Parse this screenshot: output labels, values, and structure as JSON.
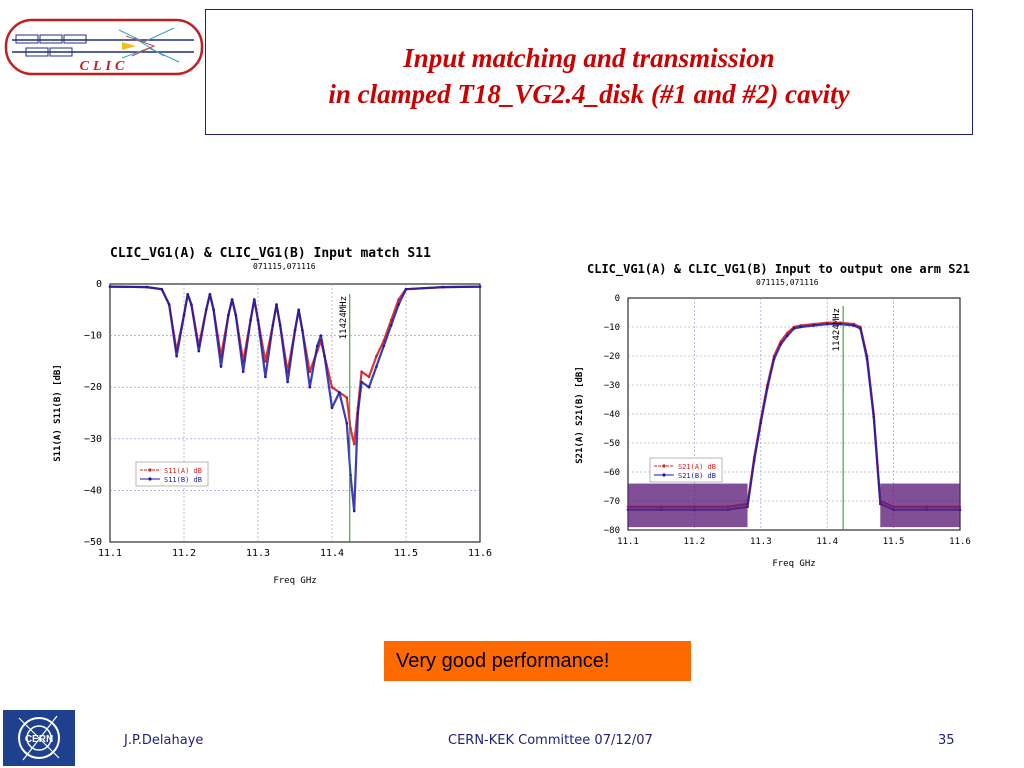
{
  "slide": {
    "title_line1": "Input matching and transmission",
    "title_line2": "in clamped T18_VG2.4_disk (#1 and #2) cavity",
    "callout": "Very good performance!",
    "footer": {
      "author": "J.P.Delahaye",
      "event": "CERN-KEK Committee 07/12/07",
      "page": "35"
    },
    "logo_text": "CLIC",
    "cern_logo_text": "CERN"
  },
  "colors": {
    "title": "#cc0000",
    "series_a": "#d42020",
    "series_b": "#1a1aa8",
    "marker_line": "#2a8a2a",
    "callout_bg": "#ff6a00",
    "grid": "#8c8cc8"
  },
  "chart_data": [
    {
      "type": "line",
      "title": "CLIC_VG1(A) & CLIC_VG1(B) Input match S11",
      "subtitle": "071115,071116",
      "xlabel": "Freq GHz",
      "ylabel": "S11(A) S11(B) [dB]",
      "xlim": [
        11.1,
        11.6
      ],
      "ylim": [
        -50,
        0
      ],
      "x_ticks": [
        "11.1",
        "11.2",
        "11.3",
        "11.4",
        "11.5",
        "11.6"
      ],
      "y_ticks": [
        "0",
        "−10",
        "−20",
        "−30",
        "−40",
        "−50"
      ],
      "marker_label": "11424MHz",
      "marker_x": 11.424,
      "grid": true,
      "legend": "left",
      "series": [
        {
          "name": "S11(A) dB",
          "x": [
            11.1,
            11.15,
            11.17,
            11.18,
            11.19,
            11.2,
            11.205,
            11.21,
            11.22,
            11.23,
            11.235,
            11.24,
            11.25,
            11.26,
            11.265,
            11.27,
            11.28,
            11.29,
            11.295,
            11.3,
            11.31,
            11.32,
            11.325,
            11.33,
            11.34,
            11.35,
            11.355,
            11.36,
            11.37,
            11.38,
            11.385,
            11.39,
            11.4,
            11.41,
            11.42,
            11.425,
            11.43,
            11.435,
            11.44,
            11.45,
            11.46,
            11.47,
            11.48,
            11.49,
            11.5,
            11.55,
            11.6
          ],
          "y": [
            -0.5,
            -0.6,
            -1,
            -4,
            -13,
            -6,
            -2,
            -4,
            -12,
            -5,
            -2,
            -5,
            -14,
            -6,
            -3,
            -6,
            -15,
            -7,
            -3,
            -7,
            -15,
            -8,
            -4,
            -8,
            -17,
            -9,
            -5,
            -9,
            -17,
            -13,
            -11,
            -14,
            -20,
            -21,
            -22,
            -28,
            -31,
            -24,
            -17,
            -18,
            -14,
            -11,
            -7,
            -3,
            -1,
            -0.6,
            -0.5
          ]
        },
        {
          "name": "S11(B) dB",
          "x": [
            11.1,
            11.15,
            11.17,
            11.18,
            11.19,
            11.2,
            11.205,
            11.21,
            11.22,
            11.23,
            11.235,
            11.24,
            11.25,
            11.26,
            11.265,
            11.27,
            11.28,
            11.29,
            11.295,
            11.3,
            11.31,
            11.32,
            11.325,
            11.33,
            11.34,
            11.35,
            11.355,
            11.36,
            11.37,
            11.38,
            11.385,
            11.39,
            11.4,
            11.41,
            11.42,
            11.425,
            11.43,
            11.435,
            11.44,
            11.45,
            11.46,
            11.47,
            11.48,
            11.49,
            11.5,
            11.55,
            11.6
          ],
          "y": [
            -0.5,
            -0.6,
            -1,
            -4,
            -14,
            -6,
            -2,
            -4,
            -13,
            -5,
            -2,
            -5,
            -16,
            -6,
            -3,
            -6,
            -17,
            -7,
            -3,
            -7,
            -18,
            -8,
            -4,
            -8,
            -19,
            -9,
            -5,
            -9,
            -20,
            -12,
            -10,
            -14,
            -24,
            -21,
            -27,
            -37,
            -44,
            -25,
            -19,
            -20,
            -16,
            -12,
            -8,
            -4,
            -1,
            -0.6,
            -0.5
          ]
        }
      ]
    },
    {
      "type": "line",
      "title": "CLIC_VG1(A) & CLIC_VG1(B) Input to output one arm S21",
      "subtitle": "071115,071116",
      "xlabel": "Freq GHz",
      "ylabel": "S21(A) S21(B) [dB]",
      "xlim": [
        11.1,
        11.6
      ],
      "ylim": [
        -80,
        0
      ],
      "x_ticks": [
        "11.1",
        "11.2",
        "11.3",
        "11.4",
        "11.5",
        "11.6"
      ],
      "y_ticks": [
        "0",
        "−10",
        "−20",
        "−30",
        "−40",
        "−50",
        "−60",
        "−70",
        "−80"
      ],
      "marker_label": "11424MHz",
      "marker_x": 11.424,
      "grid": true,
      "legend": "left",
      "series": [
        {
          "name": "S21(A) dB",
          "x": [
            11.1,
            11.15,
            11.2,
            11.25,
            11.28,
            11.29,
            11.3,
            11.31,
            11.32,
            11.33,
            11.34,
            11.35,
            11.36,
            11.38,
            11.4,
            11.42,
            11.44,
            11.45,
            11.46,
            11.47,
            11.48,
            11.5,
            11.55,
            11.6
          ],
          "y": [
            -72,
            -72,
            -72,
            -72,
            -71,
            -55,
            -42,
            -30,
            -20,
            -15,
            -12,
            -10,
            -9.5,
            -9,
            -8.5,
            -8.5,
            -9,
            -10,
            -20,
            -40,
            -70,
            -72,
            -72,
            -72
          ]
        },
        {
          "name": "S21(B) dB",
          "x": [
            11.1,
            11.15,
            11.2,
            11.25,
            11.28,
            11.29,
            11.3,
            11.31,
            11.32,
            11.33,
            11.34,
            11.35,
            11.36,
            11.38,
            11.4,
            11.42,
            11.44,
            11.45,
            11.46,
            11.47,
            11.48,
            11.5,
            11.55,
            11.6
          ],
          "y": [
            -73,
            -73,
            -73,
            -73,
            -72,
            -56,
            -43,
            -31,
            -21,
            -16,
            -13,
            -10.5,
            -10,
            -9.5,
            -9,
            -9,
            -9.5,
            -10.5,
            -21,
            -41,
            -71,
            -73,
            -73,
            -73
          ]
        }
      ]
    }
  ]
}
